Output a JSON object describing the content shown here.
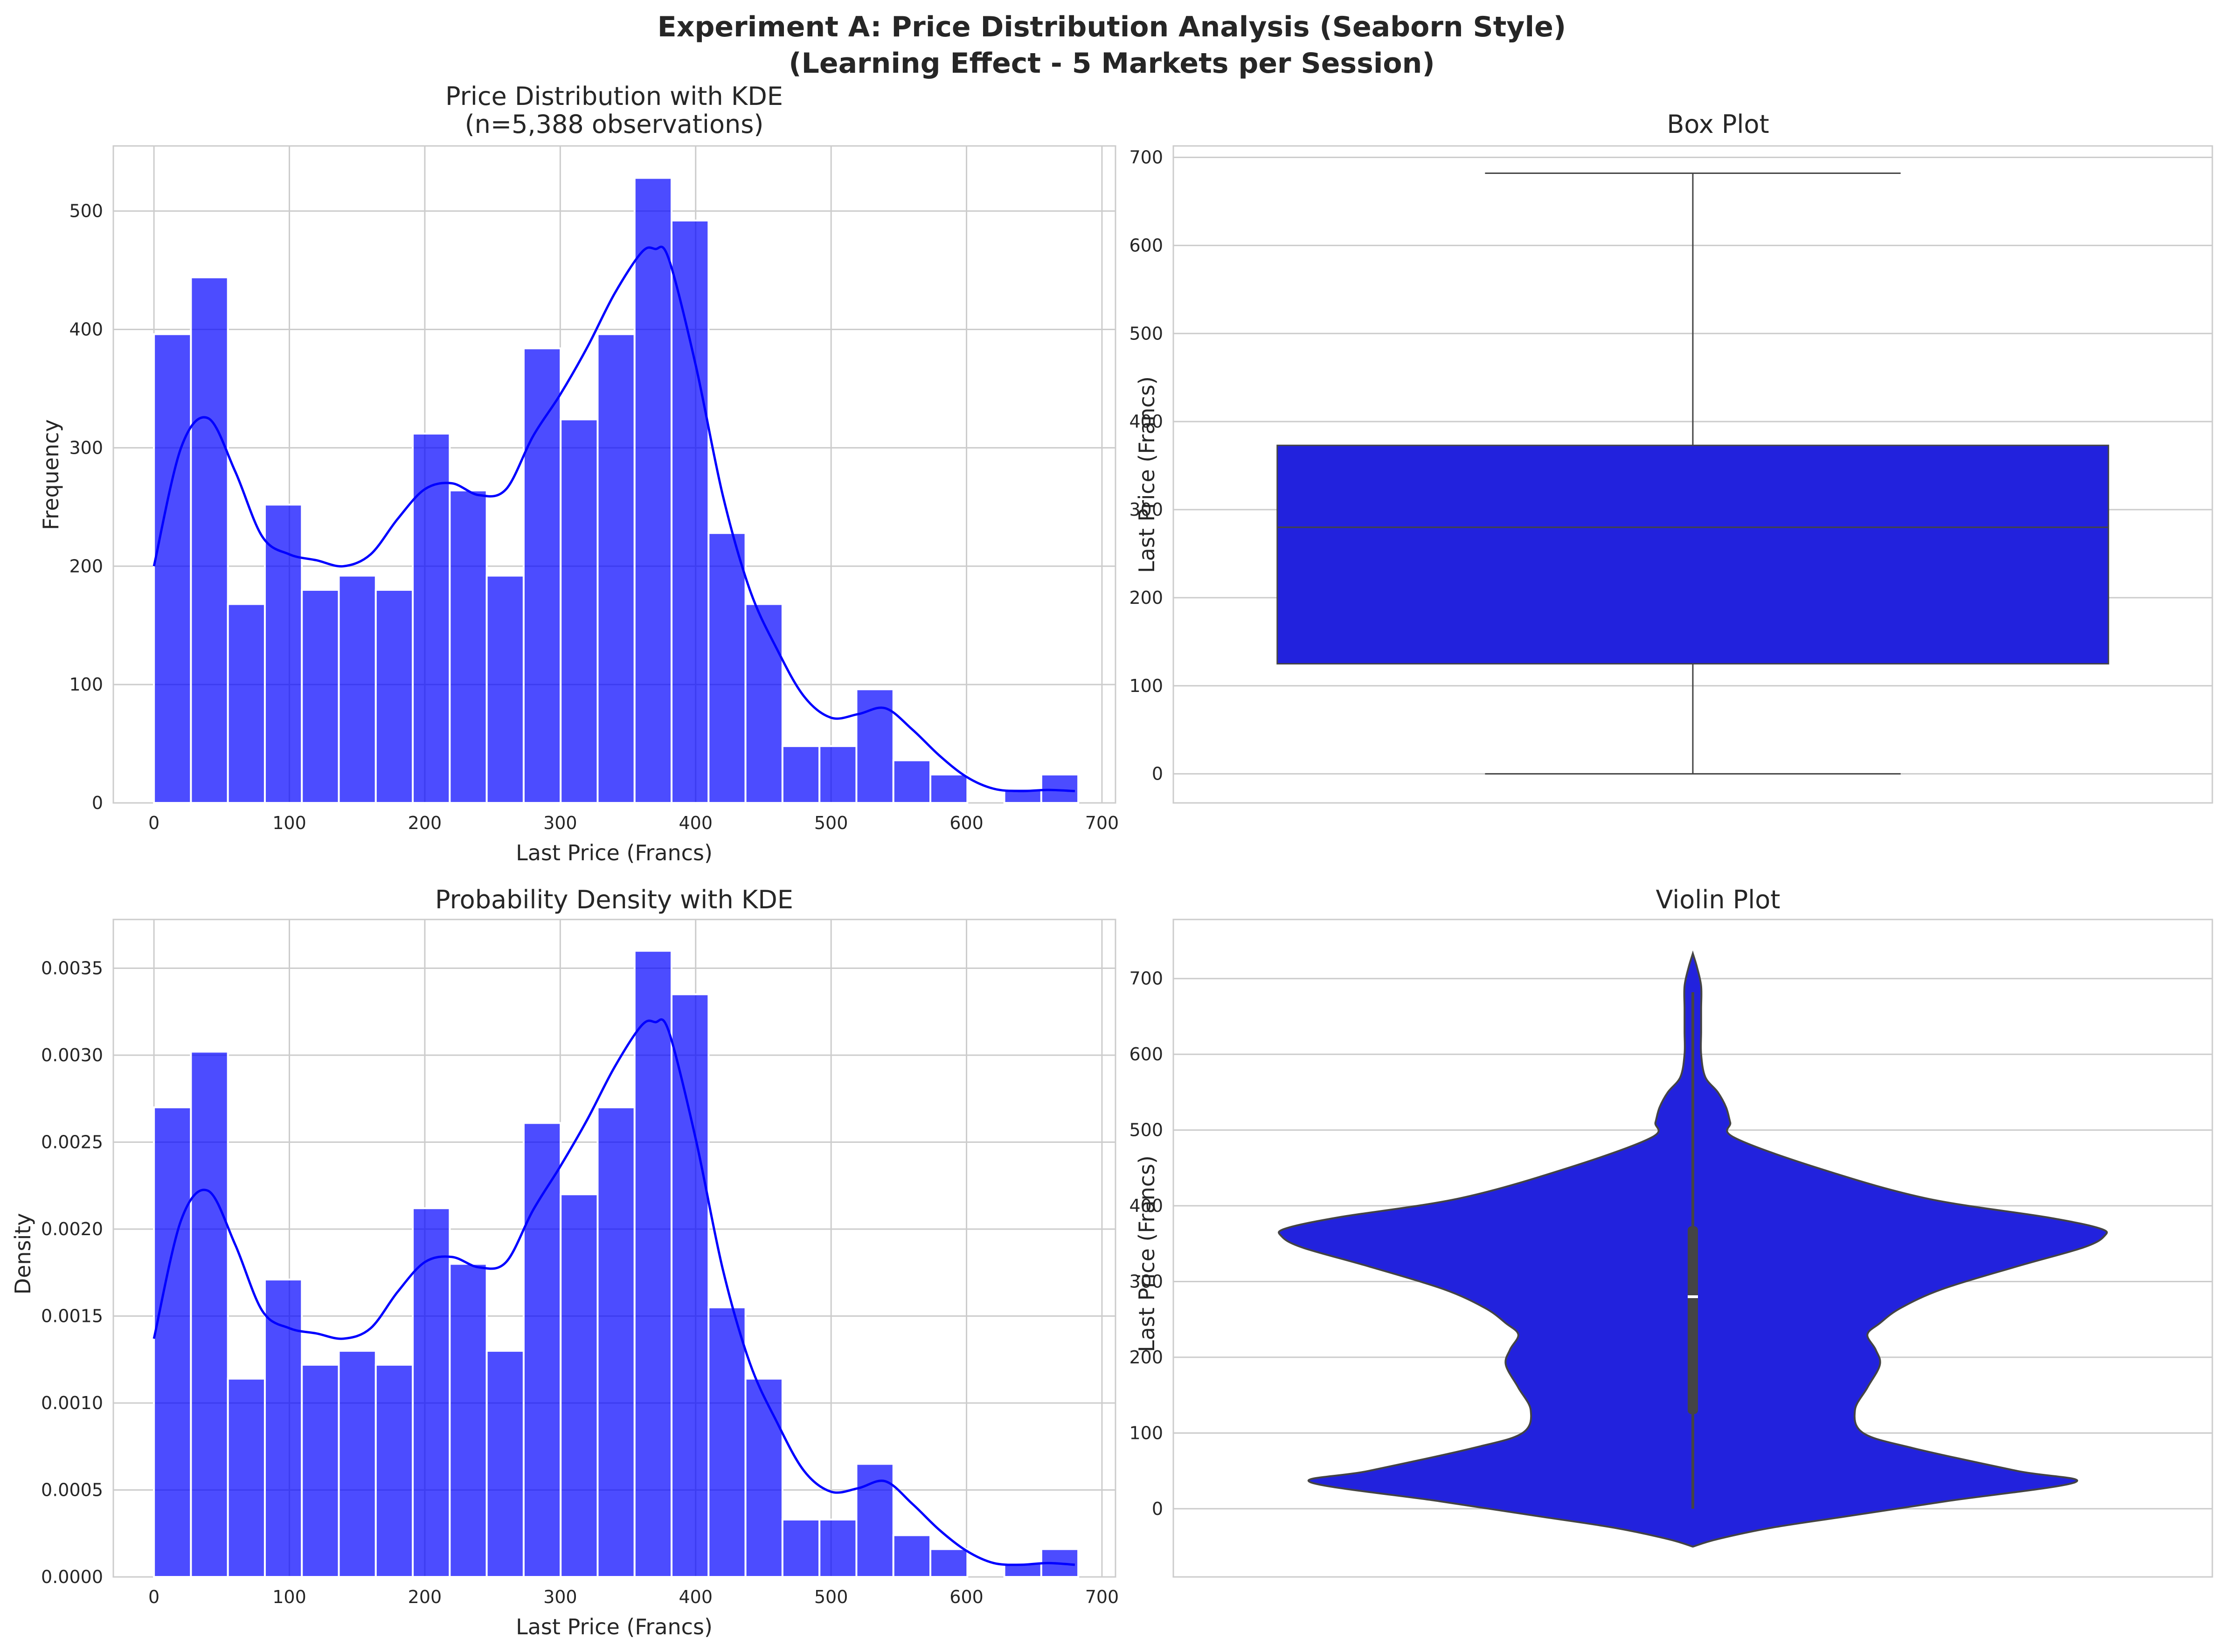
{
  "figure": {
    "title_line1": "Experiment A: Price Distribution Analysis (Seaborn Style)",
    "title_line2": "(Learning Effect - 5 Markets per Session)"
  },
  "colors": {
    "bar": "#0000ff",
    "kde": "#0000ff",
    "box": "#2222dd",
    "grid": "#cccccc",
    "whisker": "#444444",
    "text": "#262626"
  },
  "chart_data": [
    {
      "type": "bar",
      "title_line1": "Price Distribution with KDE",
      "title_line2": "(n=5,388 observations)",
      "xlabel": "Last Price (Francs)",
      "ylabel": "Frequency",
      "xlim": [
        -30,
        710
      ],
      "ylim": [
        0,
        555
      ],
      "xticks": [
        0,
        100,
        200,
        300,
        400,
        500,
        600,
        700
      ],
      "yticks": [
        0,
        100,
        200,
        300,
        400,
        500
      ],
      "bin_start": 0,
      "bin_width": 27.3,
      "values": [
        396,
        444,
        168,
        252,
        180,
        192,
        180,
        312,
        264,
        192,
        384,
        324,
        396,
        528,
        492,
        228,
        168,
        48,
        48,
        96,
        36,
        24,
        0,
        12,
        24
      ],
      "kde": {
        "x": [
          0,
          20,
          40,
          60,
          80,
          100,
          120,
          140,
          160,
          180,
          200,
          220,
          240,
          260,
          280,
          300,
          320,
          340,
          360,
          370,
          380,
          400,
          420,
          440,
          460,
          480,
          500,
          520,
          540,
          560,
          580,
          600,
          620,
          640,
          660,
          680
        ],
        "y": [
          200,
          300,
          325,
          280,
          225,
          210,
          205,
          200,
          210,
          240,
          265,
          270,
          260,
          265,
          310,
          345,
          385,
          430,
          465,
          468,
          460,
          370,
          260,
          180,
          130,
          90,
          72,
          75,
          80,
          62,
          40,
          22,
          12,
          10,
          11,
          10
        ]
      }
    },
    {
      "type": "box",
      "title": "Box Plot",
      "ylabel": "Last Price (Francs)",
      "ylim": [
        -33,
        713
      ],
      "yticks": [
        0,
        100,
        200,
        300,
        400,
        500,
        600,
        700
      ],
      "whisker_low": 0,
      "q1": 125,
      "median": 280,
      "q3": 373,
      "whisker_high": 682
    },
    {
      "type": "bar",
      "title": "Probability Density with KDE",
      "xlabel": "Last Price (Francs)",
      "ylabel": "Density",
      "xlim": [
        -30,
        710
      ],
      "ylim": [
        0,
        0.00378
      ],
      "xticks": [
        0,
        100,
        200,
        300,
        400,
        500,
        600,
        700
      ],
      "yticks": [
        0,
        0.0005,
        0.001,
        0.0015,
        0.002,
        0.0025,
        0.003,
        0.0035
      ],
      "ytick_labels": [
        "0.0000",
        "0.0005",
        "0.0010",
        "0.0015",
        "0.0020",
        "0.0025",
        "0.0030",
        "0.0035"
      ],
      "bin_start": 0,
      "bin_width": 27.3,
      "values": [
        0.0027,
        0.00302,
        0.00114,
        0.00171,
        0.00122,
        0.0013,
        0.00122,
        0.00212,
        0.0018,
        0.0013,
        0.00261,
        0.0022,
        0.0027,
        0.0036,
        0.00335,
        0.00155,
        0.00114,
        0.00033,
        0.00033,
        0.00065,
        0.00024,
        0.00016,
        0,
        8e-05,
        0.00016
      ],
      "kde": {
        "x": [
          0,
          20,
          40,
          60,
          80,
          100,
          120,
          140,
          160,
          180,
          200,
          220,
          240,
          260,
          280,
          300,
          320,
          340,
          360,
          370,
          380,
          400,
          420,
          440,
          460,
          480,
          500,
          520,
          540,
          560,
          580,
          600,
          620,
          640,
          660,
          680
        ],
        "y": [
          0.00137,
          0.00205,
          0.00222,
          0.00191,
          0.00153,
          0.00143,
          0.0014,
          0.00137,
          0.00143,
          0.00164,
          0.00181,
          0.00184,
          0.00178,
          0.00181,
          0.00211,
          0.00236,
          0.00263,
          0.00293,
          0.00317,
          0.00319,
          0.00314,
          0.00252,
          0.00177,
          0.00123,
          0.00089,
          0.00061,
          0.00049,
          0.00051,
          0.00055,
          0.00042,
          0.00027,
          0.00015,
          8e-05,
          7e-05,
          8e-05,
          7e-05
        ]
      }
    },
    {
      "type": "violin",
      "title": "Violin Plot",
      "ylabel": "Last Price (Francs)",
      "ylim": [
        -90,
        778
      ],
      "yticks": [
        0,
        100,
        200,
        300,
        400,
        500,
        600,
        700
      ],
      "profile": {
        "y": [
          -50,
          -40,
          -25,
          -10,
          10,
          35,
          50,
          80,
          100,
          130,
          160,
          190,
          210,
          230,
          245,
          265,
          290,
          320,
          345,
          360,
          370,
          385,
          410,
          450,
          490,
          510,
          530,
          550,
          570,
          600,
          630,
          660,
          690,
          715,
          733
        ],
        "half_width": [
          0.0,
          0.06,
          0.19,
          0.37,
          0.61,
          0.92,
          0.78,
          0.53,
          0.41,
          0.39,
          0.42,
          0.45,
          0.44,
          0.42,
          0.45,
          0.5,
          0.6,
          0.78,
          0.94,
          0.99,
          0.98,
          0.85,
          0.56,
          0.3,
          0.1,
          0.09,
          0.08,
          0.06,
          0.03,
          0.02,
          0.02,
          0.02,
          0.02,
          0.01,
          0.0
        ]
      },
      "inner_box": {
        "low": 0,
        "q1": 125,
        "median": 280,
        "q3": 373,
        "high": 682
      }
    }
  ]
}
